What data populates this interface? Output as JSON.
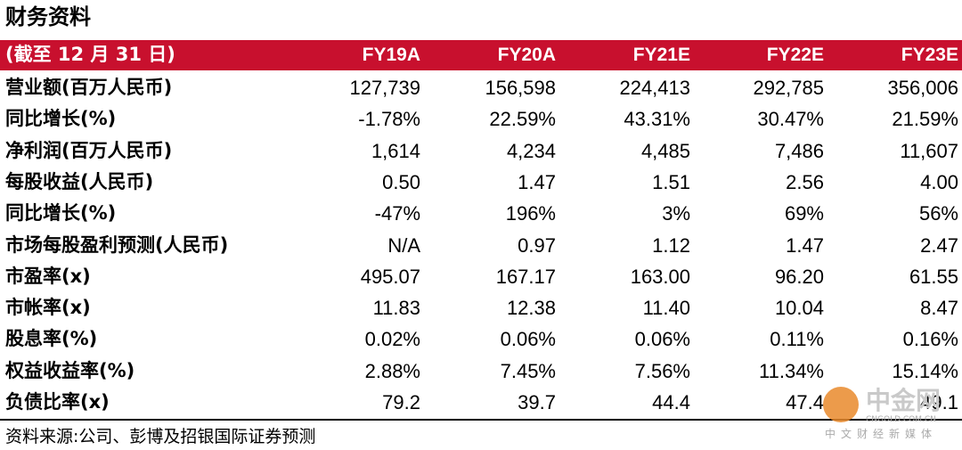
{
  "header": {
    "title": "财务资料"
  },
  "table": {
    "columns": [
      "(截至 12 月 31 日)",
      "FY19A",
      "FY20A",
      "FY21E",
      "FY22E",
      "FY23E"
    ],
    "rows": [
      [
        "营业额(百万人民币)",
        "127,739",
        "156,598",
        "224,413",
        "292,785",
        "356,006"
      ],
      [
        "同比增长(%)",
        "-1.78%",
        "22.59%",
        "43.31%",
        "30.47%",
        "21.59%"
      ],
      [
        "净利润(百万人民币)",
        "1,614",
        "4,234",
        "4,485",
        "7,486",
        "11,607"
      ],
      [
        "每股收益(人民币)",
        "0.50",
        "1.47",
        "1.51",
        "2.56",
        "4.00"
      ],
      [
        "同比增长(%)",
        "-47%",
        "196%",
        "3%",
        "69%",
        "56%"
      ],
      [
        "市场每股盈利预测(人民币)",
        "N/A",
        "0.97",
        "1.12",
        "1.47",
        "2.47"
      ],
      [
        "市盈率(x)",
        "495.07",
        "167.17",
        "163.00",
        "96.20",
        "61.55"
      ],
      [
        "市帐率(x)",
        "11.83",
        "12.38",
        "11.40",
        "10.04",
        "8.47"
      ],
      [
        "股息率(%)",
        "0.02%",
        "0.06%",
        "0.06%",
        "0.11%",
        "0.16%"
      ],
      [
        "权益收益率(%)",
        "2.88%",
        "7.45%",
        "7.56%",
        "11.34%",
        "15.14%"
      ],
      [
        "负债比率(x)",
        "79.2",
        "39.7",
        "44.4",
        "47.4",
        "49.1"
      ]
    ]
  },
  "footer": {
    "source": "资料来源:公司、彭博及招银国际证券预测"
  },
  "watermark": {
    "brand": "中金网",
    "domain": "CNGOLD.COM.CN",
    "slogan": "中文财经新媒体"
  }
}
